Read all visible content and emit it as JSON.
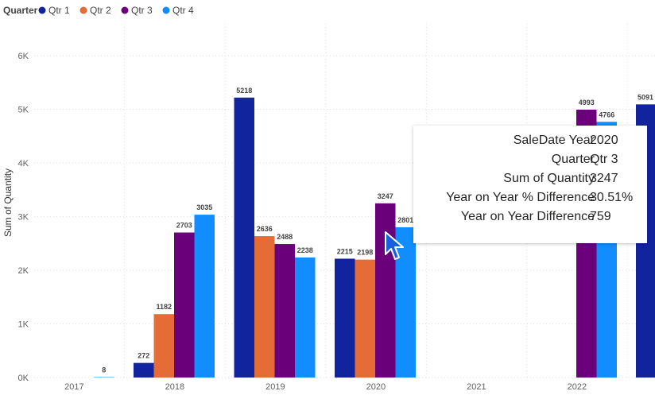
{
  "legend": {
    "title": "Quarter",
    "items": [
      {
        "name": "Qtr 1",
        "color": "#12239e"
      },
      {
        "name": "Qtr 2",
        "color": "#e66c37"
      },
      {
        "name": "Qtr 3",
        "color": "#6b007b"
      },
      {
        "name": "Qtr 4",
        "color": "#118dff"
      }
    ]
  },
  "chart_data": {
    "type": "bar",
    "categories": [
      "2017",
      "2018",
      "2019",
      "2020",
      "2021",
      "2022"
    ],
    "ylabel": "Sum of Quantity",
    "ylim": [
      0,
      6000
    ],
    "yticks": [
      {
        "value": 0,
        "label": "0K"
      },
      {
        "value": 1000,
        "label": "1K"
      },
      {
        "value": 2000,
        "label": "2K"
      },
      {
        "value": 3000,
        "label": "3K"
      },
      {
        "value": 4000,
        "label": "4K"
      },
      {
        "value": 5000,
        "label": "5K"
      },
      {
        "value": 6000,
        "label": "6K"
      }
    ],
    "grid": true,
    "legend_position": "top-left",
    "series": [
      {
        "name": "Qtr 1",
        "values": [
          null,
          272,
          5218,
          2215,
          null,
          null
        ],
        "labels": [
          "",
          "272",
          "5218",
          "2215",
          "",
          ""
        ]
      },
      {
        "name": "Qtr 2",
        "values": [
          null,
          1182,
          2636,
          2198,
          null,
          null
        ],
        "labels": [
          "",
          "1182",
          "2636",
          "2198",
          "",
          ""
        ]
      },
      {
        "name": "Qtr 3",
        "values": [
          null,
          2703,
          2488,
          3247,
          null,
          4993
        ],
        "labels": [
          "",
          "2703",
          "2488",
          "3247",
          "",
          "4993"
        ]
      },
      {
        "name": "Qtr 4",
        "values": [
          8,
          3035,
          2238,
          2801,
          null,
          4766
        ],
        "labels": [
          "8",
          "3035",
          "2238",
          "2801",
          "",
          "4766"
        ]
      }
    ],
    "extra_bar": {
      "series": "Qtr 1",
      "value": 5091,
      "label": "5091"
    }
  },
  "tooltip": {
    "rows": [
      {
        "key": "SaleDate Year",
        "value": "2020"
      },
      {
        "key": "Quarter",
        "value": "Qtr 3"
      },
      {
        "key": "Sum of Quantity",
        "value": "3247"
      },
      {
        "key": "Year on Year % Difference",
        "value": "30.51%"
      },
      {
        "key": "Year on Year Difference",
        "value": "759"
      }
    ]
  },
  "colors": {
    "grid": "#e1dfdd",
    "tick": "#605e5c"
  }
}
